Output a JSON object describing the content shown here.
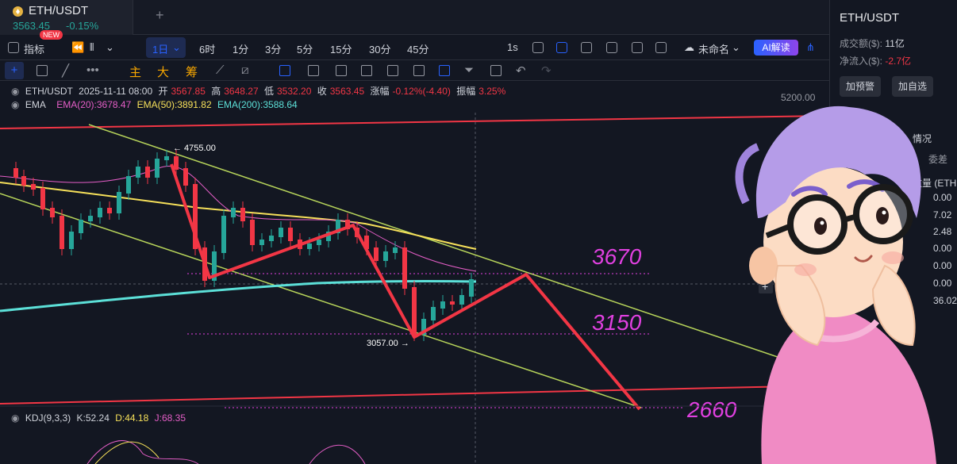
{
  "tab": {
    "symbol": "ETH/USDT",
    "price": "3563.45",
    "change": "-0.15%",
    "add": "+"
  },
  "toolbar": {
    "indicators": "指标",
    "new_badge": "NEW",
    "interval_active": "1日",
    "intervals": [
      "6时",
      "1分",
      "3分",
      "5分",
      "15分",
      "30分",
      "45分"
    ],
    "interval_1s": "1s",
    "layout_name": "未命名",
    "ai": "AI解读"
  },
  "drawbar": {
    "tools": [
      "主",
      "大",
      "筹"
    ]
  },
  "legend": {
    "symbol": "ETH/USDT",
    "date": "2025-11-11 08:00",
    "open_label": "开",
    "open": "3567.85",
    "high_label": "高",
    "high": "3648.27",
    "low_label": "低",
    "low": "3532.20",
    "close_label": "收",
    "close": "3563.45",
    "chg_label": "涨幅",
    "chg": "-0.12%(-4.40)",
    "amp_label": "振幅",
    "amp": "3.25%",
    "ema_title": "EMA",
    "ema20": "EMA(20):3678.47",
    "ema50": "EMA(50):3891.82",
    "ema200": "EMA(200):3588.64"
  },
  "chart_annotations": {
    "price_axis_top": "5200.00",
    "high_marker": "4755.00",
    "low_marker": "3057.00",
    "targets": [
      "3670",
      "3150",
      "2660"
    ]
  },
  "kdj": {
    "title": "KDJ(9,3,3)",
    "k": "K:52.24",
    "d": "D:44.18",
    "j": "J:68.35"
  },
  "right_panel": {
    "symbol": "ETH/USDT",
    "turnover_label": "成交额($):",
    "turnover": "11亿",
    "netflow_label": "净流入($):",
    "netflow": "-2.7亿",
    "btn_alert": "加预警",
    "btn_watch": "加自选",
    "section": "情况",
    "committee": "委差",
    "qty_label": "数量 (ETH",
    "values": [
      "0.00",
      "7.02",
      "2.48",
      "0.00",
      "0.00",
      "0.00",
      "36.02"
    ]
  },
  "colors": {
    "up": "#26a69a",
    "down": "#f23645",
    "accent": "#2962ff",
    "ema20": "#e55ec7",
    "ema50": "#f6e05a",
    "ema200": "#5ce0d8",
    "target": "#e040e0"
  }
}
